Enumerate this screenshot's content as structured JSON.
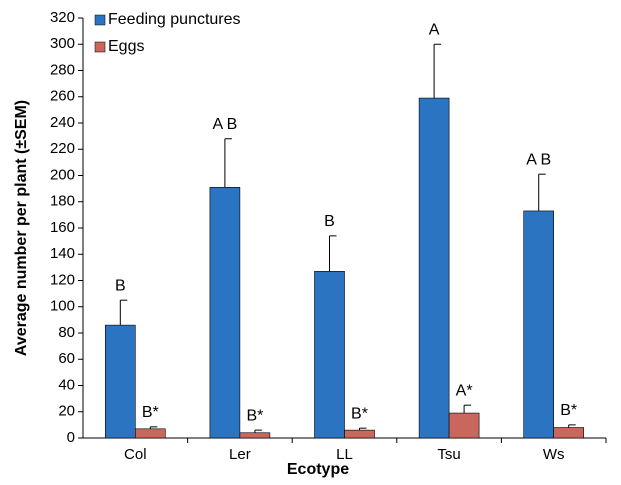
{
  "chart_data": {
    "type": "bar",
    "x_label": "Ecotype",
    "y_label": "Average number per plant (±SEM)",
    "categories": [
      "Col",
      "Ler",
      "LL",
      "Tsu",
      "Ws"
    ],
    "series": [
      {
        "name": "Feeding punctures",
        "color": "#2a74c2",
        "values": [
          86,
          191,
          127,
          259,
          173
        ],
        "errors": [
          19,
          37,
          27,
          41,
          28
        ],
        "labels": [
          "B",
          "A B",
          "B",
          "A",
          "A B"
        ]
      },
      {
        "name": "Eggs",
        "color": "#c9675c",
        "values": [
          7,
          4,
          6,
          19,
          8
        ],
        "errors": [
          1.5,
          2,
          1.5,
          6,
          2
        ],
        "labels": [
          "B*",
          "B*",
          "B*",
          "A*",
          "B*"
        ]
      }
    ],
    "ylim": [
      0,
      320
    ],
    "yticks": [
      0,
      20,
      40,
      60,
      80,
      100,
      120,
      140,
      160,
      180,
      200,
      220,
      240,
      260,
      280,
      300,
      320
    ],
    "grid": false,
    "legend": "top-left"
  }
}
